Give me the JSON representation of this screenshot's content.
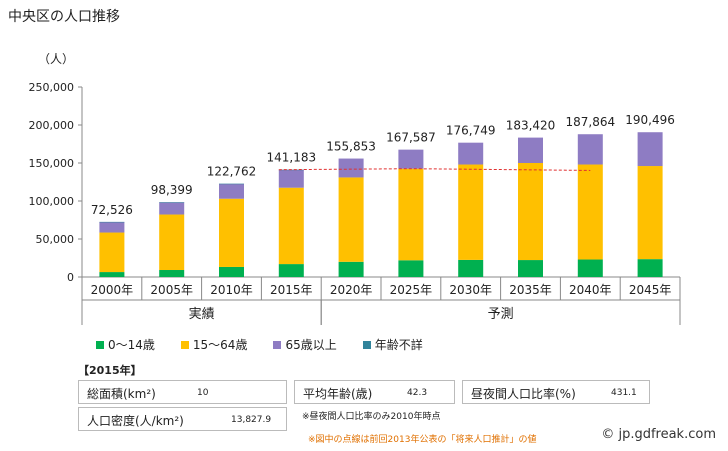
{
  "title": "中央区の人口推移",
  "unit_label": "（人）",
  "chart_data": {
    "type": "bar",
    "stacked": true,
    "categories": [
      "2000年",
      "2005年",
      "2010年",
      "2015年",
      "2020年",
      "2025年",
      "2030年",
      "2035年",
      "2040年",
      "2045年"
    ],
    "series": [
      {
        "name": "0～14歳",
        "color": "#00b050",
        "values": [
          6500,
          9200,
          13200,
          17000,
          20000,
          22000,
          22500,
          22300,
          23000,
          23500
        ]
      },
      {
        "name": "15～64歳",
        "color": "#ffc000",
        "values": [
          52000,
          73000,
          89800,
          100500,
          111000,
          120500,
          125500,
          127700,
          125000,
          122500
        ]
      },
      {
        "name": "65歳以上",
        "color": "#8e7cc3",
        "values": [
          13900,
          16000,
          19600,
          23500,
          24853,
          25087,
          28749,
          33420,
          39864,
          44496
        ]
      },
      {
        "name": "年齢不詳",
        "color": "#31849b",
        "values": [
          126,
          199,
          162,
          183,
          0,
          0,
          0,
          0,
          0,
          0
        ]
      }
    ],
    "totals": [
      "72,526",
      "98,399",
      "122,762",
      "141,183",
      "155,853",
      "167,587",
      "176,749",
      "183,420",
      "187,864",
      "190,496"
    ],
    "y_ticks": [
      "0",
      "50,000",
      "100,000",
      "150,000",
      "200,000",
      "250,000"
    ],
    "ylim": [
      0,
      250000
    ],
    "grid": false,
    "legend_position": "bottom",
    "groups": [
      {
        "label": "実績",
        "start": 0,
        "end": 3
      },
      {
        "label": "予測",
        "start": 4,
        "end": 9
      }
    ],
    "previous_projection": {
      "style": "dashed",
      "color": "#e03030",
      "start": 3,
      "end": 8,
      "values": [
        141183,
        141900,
        142500,
        141800,
        141000,
        140200
      ]
    }
  },
  "info": {
    "heading": "【2015年】",
    "area_label": "総面積(km²)",
    "area_value": "10",
    "avg_age_label": "平均年齢(歳)",
    "avg_age_value": "42.3",
    "daytime_label": "昼夜間人口比率(%)",
    "daytime_value": "431.1",
    "density_label": "人口密度(人/km²)",
    "density_value": "13,827.9",
    "note1": "※昼夜間人口比率のみ2010年時点",
    "note2": "※図中の点線は前回2013年公表の「将来人口推計」の値"
  },
  "credit": "© jp.gdfreak.com"
}
